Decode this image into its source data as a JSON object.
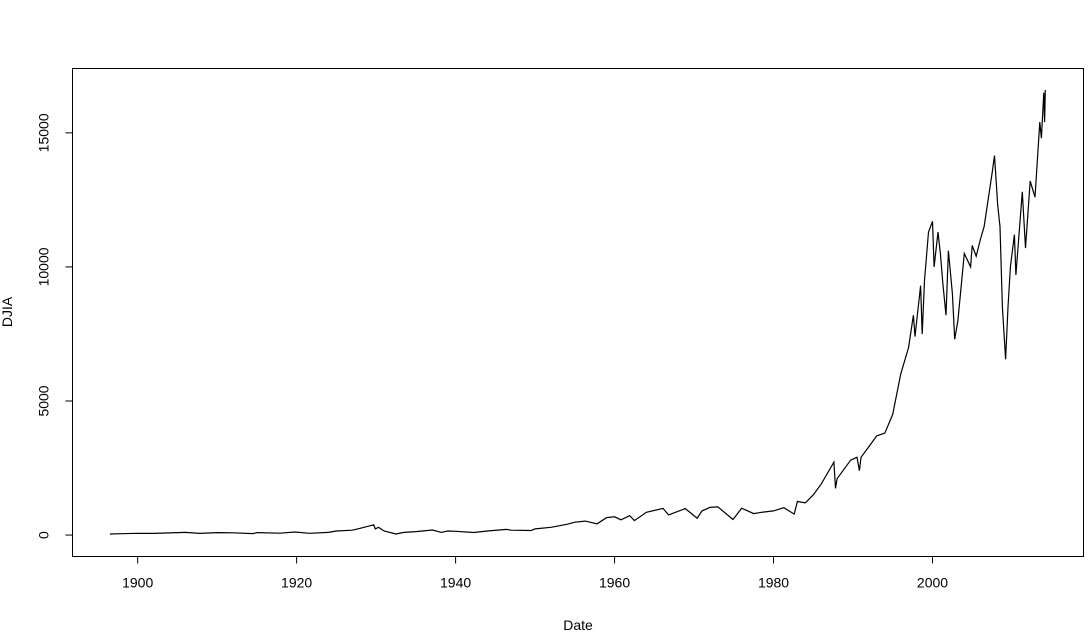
{
  "chart_data": {
    "type": "line",
    "title": "",
    "xlabel": "Date",
    "ylabel": "DJIA",
    "xlim": [
      1891.8,
      2019.0
    ],
    "ylim": [
      -800,
      17400
    ],
    "xticks": [
      1900,
      1920,
      1940,
      1960,
      1980,
      2000
    ],
    "yticks": [
      0,
      5000,
      10000,
      15000
    ],
    "grid": false,
    "line_color": "#000000",
    "series": [
      {
        "x": [
          1896.5,
          1898,
          1900,
          1902,
          1906,
          1907.8,
          1910,
          1912,
          1914.5,
          1915,
          1917.9,
          1919.8,
          1921.6,
          1924,
          1925,
          1927,
          1928,
          1929.7,
          1929.9,
          1930.3,
          1931,
          1932.5,
          1933.5,
          1935,
          1937.1,
          1938.2,
          1939,
          1940,
          1942.3,
          1944,
          1946.4,
          1947,
          1949.5,
          1950,
          1952,
          1954,
          1955,
          1956.3,
          1957.8,
          1959,
          1960,
          1960.8,
          1961.9,
          1962.5,
          1964,
          1966.1,
          1966.8,
          1968.9,
          1970.4,
          1971,
          1972,
          1973,
          1974.9,
          1976,
          1977.5,
          1978.5,
          1980,
          1981.3,
          1982.6,
          1983,
          1984,
          1985,
          1986,
          1987.6,
          1987.8,
          1988,
          1989.7,
          1990.5,
          1990.8,
          1991,
          1992,
          1993,
          1994,
          1995,
          1996,
          1997,
          1997.6,
          1997.8,
          1998.5,
          1998.7,
          1999,
          1999.5,
          2000.0,
          2000.2,
          2000.7,
          2001,
          2001.3,
          2001.7,
          2002,
          2002.5,
          2002.8,
          2003.2,
          2004,
          2004.8,
          2005,
          2005.5,
          2006,
          2006.5,
          2007,
          2007.5,
          2007.8,
          2008.2,
          2008.5,
          2008.8,
          2009.2,
          2009.5,
          2009.8,
          2010.3,
          2010.5,
          2011.3,
          2011.7,
          2012.3,
          2012.9,
          2013.5,
          2013.7,
          2014.0,
          2014.1,
          2014.2
        ],
        "y": [
          40,
          50,
          66,
          60,
          100,
          60,
          90,
          85,
          55,
          90,
          70,
          115,
          67,
          100,
          150,
          180,
          250,
          381,
          230,
          290,
          150,
          41,
          100,
          130,
          190,
          100,
          150,
          140,
          95,
          150,
          210,
          180,
          170,
          230,
          290,
          400,
          480,
          520,
          420,
          650,
          680,
          570,
          720,
          540,
          850,
          995,
          750,
          985,
          630,
          900,
          1030,
          1050,
          580,
          1000,
          800,
          850,
          900,
          1020,
          780,
          1250,
          1200,
          1500,
          1900,
          2720,
          1740,
          2100,
          2790,
          2900,
          2400,
          2900,
          3300,
          3700,
          3800,
          4500,
          6000,
          7000,
          8200,
          7400,
          9300,
          7500,
          9500,
          11300,
          11700,
          10000,
          11300,
          10500,
          9400,
          8200,
          10600,
          9000,
          7300,
          8000,
          10500,
          10000,
          10800,
          10400,
          11000,
          11500,
          12500,
          13500,
          14150,
          12300,
          11500,
          8500,
          6550,
          8500,
          10000,
          11200,
          9700,
          12800,
          10700,
          13200,
          12600,
          15400,
          14800,
          16500,
          15400,
          16600
        ]
      }
    ]
  }
}
